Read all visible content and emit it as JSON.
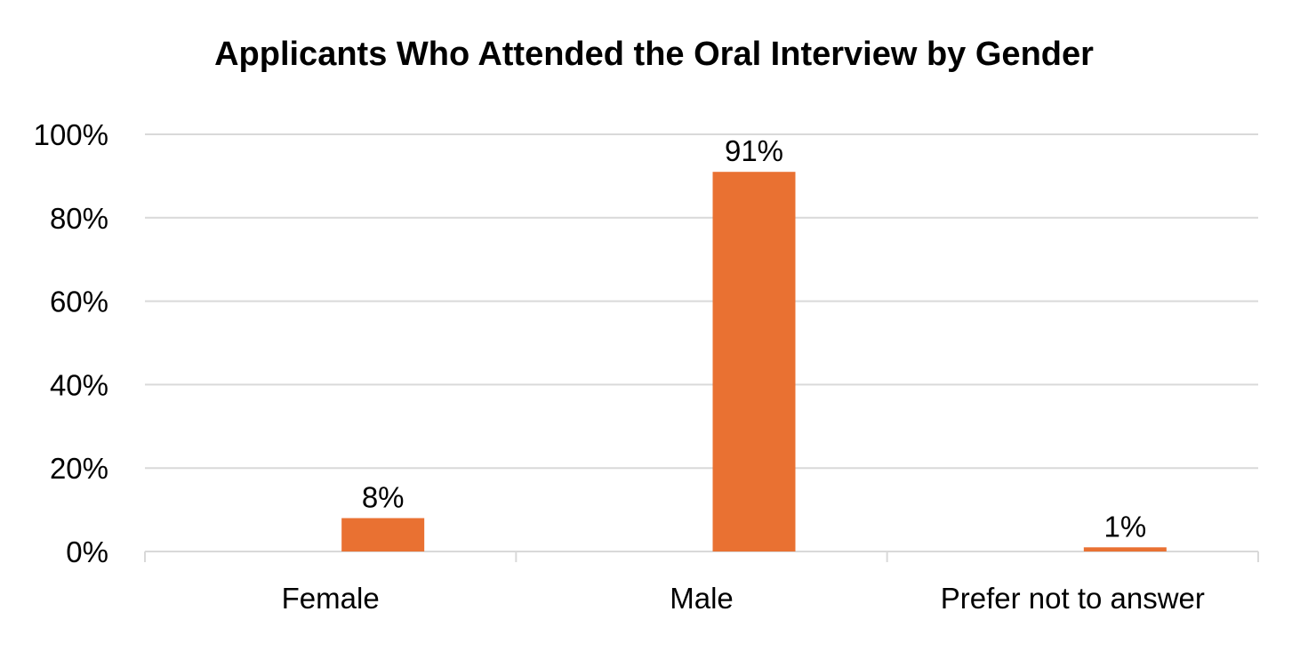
{
  "chart_data": {
    "type": "bar",
    "title": "Applicants Who Attended the Oral Interview by Gender",
    "categories": [
      "Female",
      "Male",
      "Prefer not to answer"
    ],
    "values": [
      8,
      91,
      1
    ],
    "data_labels": [
      "8%",
      "91%",
      "1%"
    ],
    "xlabel": "",
    "ylabel": "",
    "ylim": [
      0,
      100
    ],
    "yticks": [
      0,
      20,
      40,
      60,
      80,
      100
    ],
    "ytick_labels": [
      "0%",
      "20%",
      "40%",
      "60%",
      "80%",
      "100%"
    ],
    "grid": true,
    "legend": "none",
    "bar_color": "#E97132",
    "grid_color": "#D9D9D9"
  }
}
